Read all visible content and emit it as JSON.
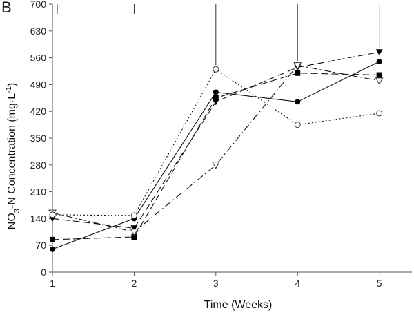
{
  "chart_data": {
    "type": "line",
    "panel_label": "B",
    "title": "",
    "xlabel": "Time (Weeks)",
    "ylabel_parts": {
      "prefix": "NO",
      "sub": "3",
      "mid": "-N Concentration (mg·L",
      "sup": "-1",
      "suffix": ")"
    },
    "x": [
      1,
      2,
      3,
      4,
      5
    ],
    "xlim": [
      1,
      5.4
    ],
    "ylim": [
      0,
      700
    ],
    "yticks": [
      0,
      70,
      140,
      210,
      280,
      350,
      420,
      490,
      560,
      630,
      700
    ],
    "xticks": [
      1,
      2,
      3,
      4,
      5
    ],
    "error_bar_tops": [
      700,
      700,
      700,
      700,
      700
    ],
    "series": [
      {
        "name": "Filled circle, solid",
        "marker": "circle-filled",
        "dash": "solid",
        "values": [
          60,
          140,
          470,
          445,
          550
        ]
      },
      {
        "name": "Filled square, long dash",
        "marker": "square-filled",
        "dash": "longdash",
        "values": [
          85,
          92,
          455,
          520,
          515
        ]
      },
      {
        "name": "Filled down-triangle, long dash",
        "marker": "triangle-down-filled",
        "dash": "longdash",
        "values": [
          140,
          115,
          445,
          535,
          575
        ]
      },
      {
        "name": "Open down-triangle, dash-dot",
        "marker": "triangle-down-open",
        "dash": "dashdot",
        "values": [
          155,
          105,
          280,
          540,
          500
        ]
      },
      {
        "name": "Open circle, dotted",
        "marker": "circle-open",
        "dash": "dotted",
        "values": [
          150,
          148,
          530,
          385,
          415
        ]
      }
    ]
  }
}
